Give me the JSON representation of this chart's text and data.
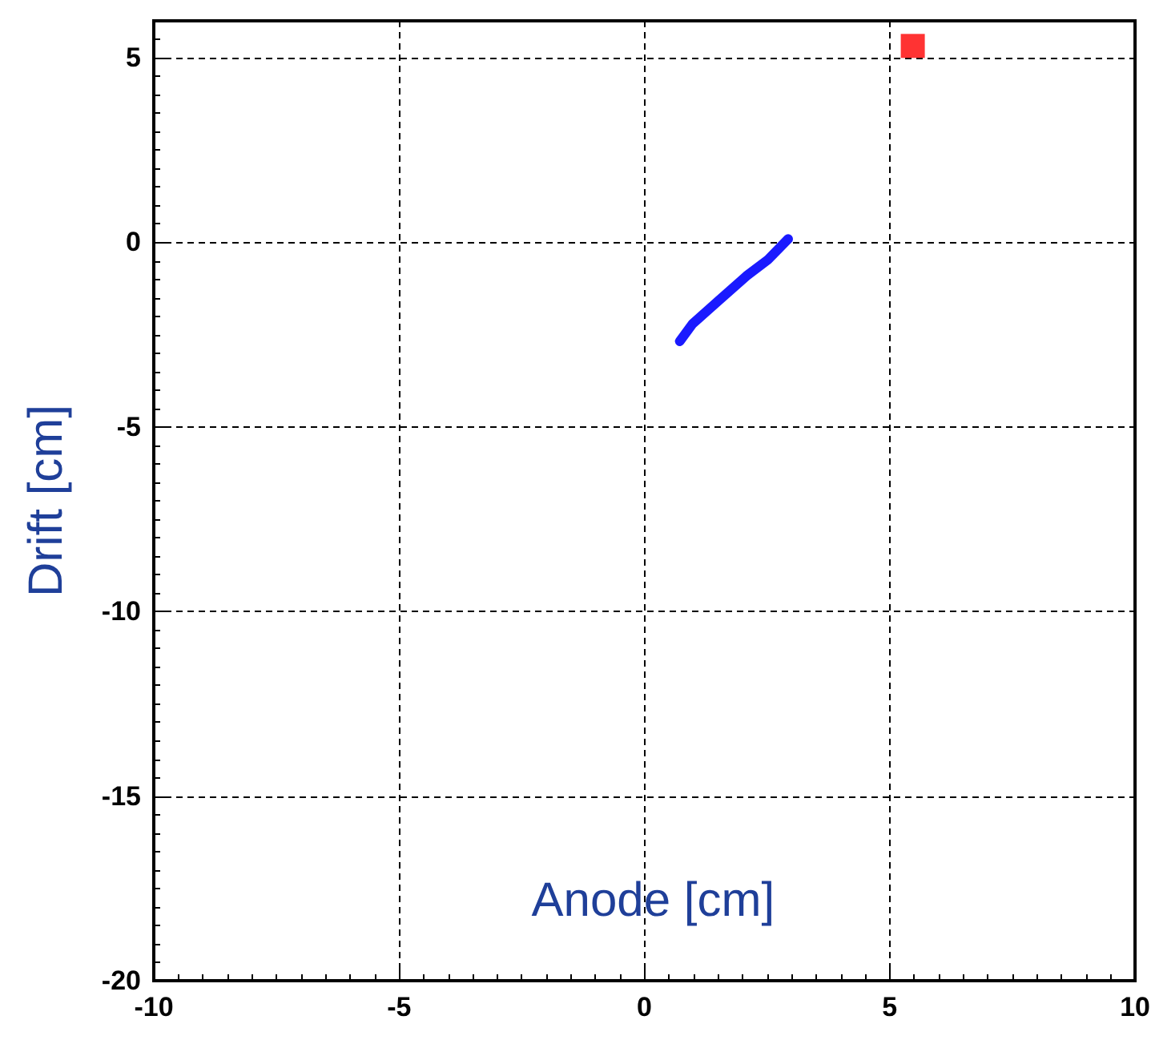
{
  "chart_data": {
    "type": "scatter",
    "xlabel": "Anode [cm]",
    "ylabel": "Drift [cm]",
    "xlim": [
      -10,
      10
    ],
    "xticks": [
      -10,
      -5,
      0,
      5,
      10
    ],
    "ylim": [
      -20,
      6
    ],
    "yticks": [
      -20,
      -15,
      -10,
      -5,
      0,
      5
    ],
    "grid": true,
    "series": [
      {
        "type": "line",
        "color": "#1a1aff",
        "marker": "none",
        "x": [
          0.72,
          0.98,
          1.53,
          2.08,
          2.51,
          2.93
        ],
        "values": [
          -2.68,
          -2.21,
          -1.56,
          -0.91,
          -0.48,
          0.09
        ]
      },
      {
        "color": "#ff0000",
        "marker": "square",
        "x": [
          5.47
        ],
        "values": [
          5.32
        ]
      }
    ]
  }
}
